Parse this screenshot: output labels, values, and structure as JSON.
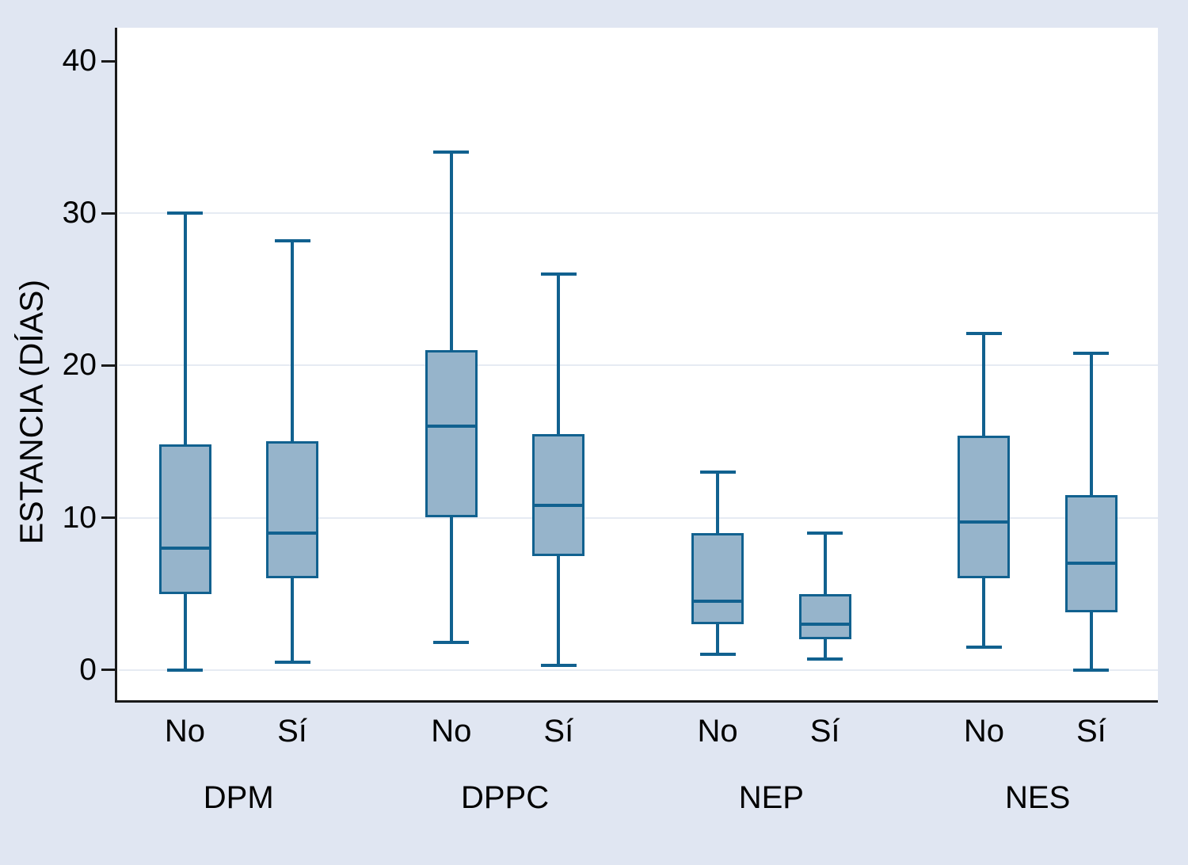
{
  "figure": {
    "background": "#e0e6f2",
    "plot_background": "#ffffff",
    "gridline_color": "#e6ebf3",
    "axis_color": "#1a1a1a",
    "box_fill": "#96b4cb",
    "box_line": "#11618f",
    "text_color": "#000000"
  },
  "chart_data": {
    "type": "boxplot",
    "title": "",
    "xlabel": "",
    "ylabel": "ESTANCIA (DÍAS)",
    "yticks": [
      0,
      10,
      20,
      30,
      40
    ],
    "ylim": [
      -2,
      42.2
    ],
    "grid": "horizontal gridlines at 0, 10, 20, 30",
    "legend": "none",
    "groups": [
      {
        "label": "DPM",
        "boxes": [
          {
            "category": "No",
            "whisker_low": 0,
            "q1": 5,
            "median": 8,
            "q3": 14.8,
            "whisker_high": 30
          },
          {
            "category": "Sí",
            "whisker_low": 0.5,
            "q1": 6,
            "median": 9,
            "q3": 15,
            "whisker_high": 28.2
          }
        ]
      },
      {
        "label": "DPPC",
        "boxes": [
          {
            "category": "No",
            "whisker_low": 1.8,
            "q1": 10,
            "median": 16,
            "q3": 21,
            "whisker_high": 34
          },
          {
            "category": "Sí",
            "whisker_low": 0.3,
            "q1": 7.5,
            "median": 10.8,
            "q3": 15.5,
            "whisker_high": 26
          }
        ]
      },
      {
        "label": "NEP",
        "boxes": [
          {
            "category": "No",
            "whisker_low": 1,
            "q1": 3,
            "median": 4.5,
            "q3": 9,
            "whisker_high": 13
          },
          {
            "category": "Sí",
            "whisker_low": 0.7,
            "q1": 2,
            "median": 3,
            "q3": 5,
            "whisker_high": 9
          }
        ]
      },
      {
        "label": "NES",
        "boxes": [
          {
            "category": "No",
            "whisker_low": 1.5,
            "q1": 6,
            "median": 9.7,
            "q3": 15.4,
            "whisker_high": 22.1
          },
          {
            "category": "Sí",
            "whisker_low": 0,
            "q1": 3.8,
            "median": 7,
            "q3": 11.5,
            "whisker_high": 20.8
          }
        ]
      }
    ]
  }
}
